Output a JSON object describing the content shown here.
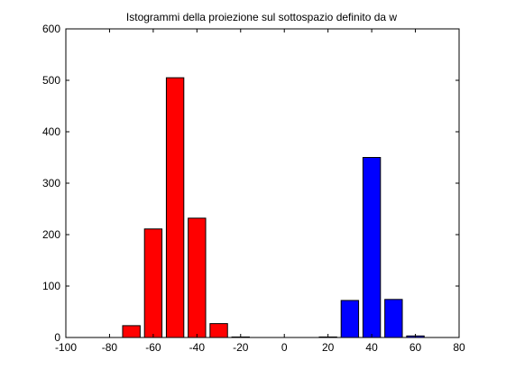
{
  "chart_data": {
    "type": "bar",
    "title": "Istogrammi della proiezione sul sottospazio definito da w",
    "xlabel": "",
    "ylabel": "",
    "xlim": [
      -100,
      80
    ],
    "ylim": [
      0,
      600
    ],
    "xticks": [
      -100,
      -80,
      -60,
      -40,
      -20,
      0,
      20,
      40,
      60,
      80
    ],
    "yticks": [
      0,
      100,
      200,
      300,
      400,
      500,
      600
    ],
    "grid": false,
    "bar_width": 8,
    "series": [
      {
        "color": "#ff0000",
        "x": [
          -70,
          -60,
          -50,
          -40,
          -30,
          -20
        ],
        "values": [
          23,
          211,
          505,
          232,
          27,
          1
        ]
      },
      {
        "color": "#0000ff",
        "x": [
          20,
          30,
          40,
          50,
          60
        ],
        "values": [
          1,
          72,
          350,
          74,
          3
        ]
      }
    ]
  }
}
